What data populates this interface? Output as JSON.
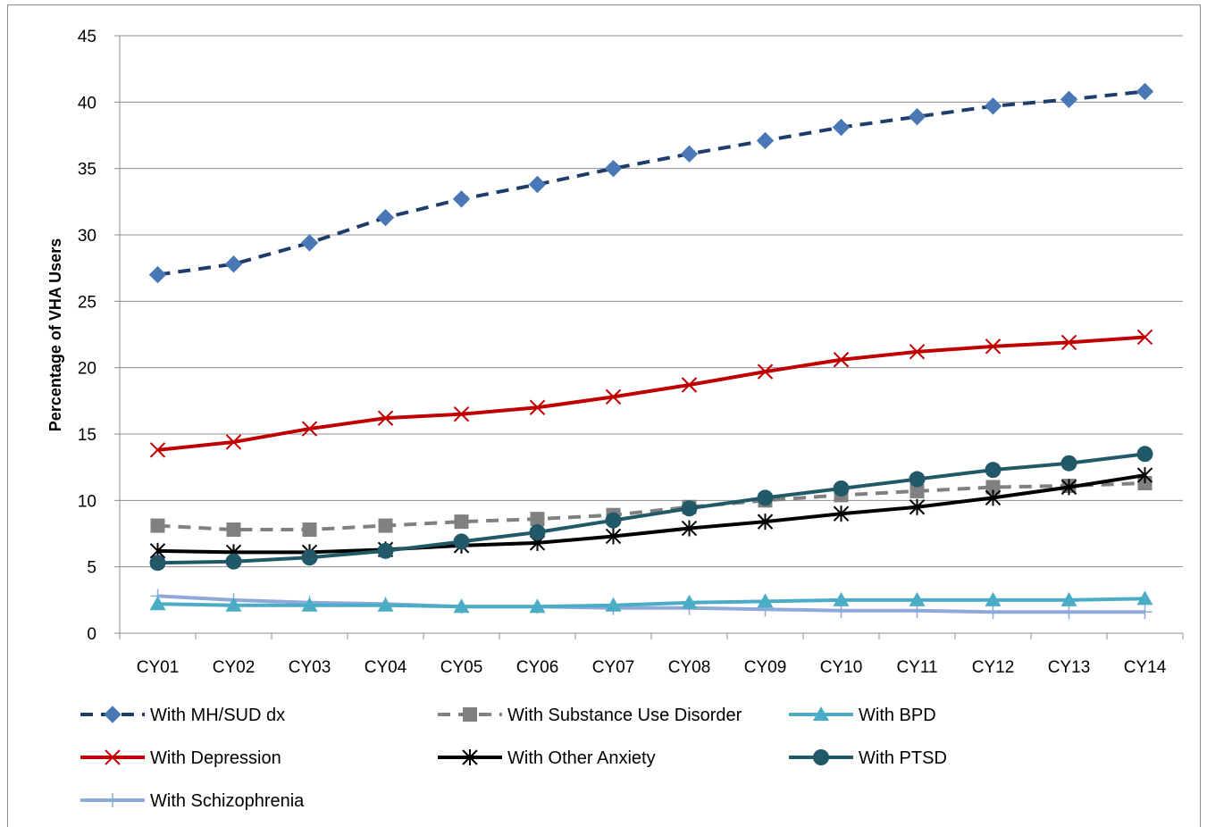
{
  "chart_data": {
    "type": "line",
    "title": "",
    "xlabel": "",
    "ylabel": "Percentage of VHA Users",
    "ylim": [
      0,
      45
    ],
    "yticks": [
      0,
      5,
      10,
      15,
      20,
      25,
      30,
      35,
      40,
      45
    ],
    "grid": "horizontal",
    "legend_position": "bottom",
    "categories": [
      "CY01",
      "CY02",
      "CY03",
      "CY04",
      "CY05",
      "CY06",
      "CY07",
      "CY08",
      "CY09",
      "CY10",
      "CY11",
      "CY12",
      "CY13",
      "CY14"
    ],
    "series": [
      {
        "name": "With MH/SUD dx",
        "color": "#1f3d6b",
        "marker_color": "#4a78b6",
        "marker": "diamond",
        "dash": true,
        "values": [
          27.0,
          27.8,
          29.4,
          31.3,
          32.7,
          33.8,
          35.0,
          36.1,
          37.1,
          38.1,
          38.9,
          39.7,
          40.2,
          40.8
        ]
      },
      {
        "name": "With Substance Use Disorder",
        "color": "#808080",
        "marker_color": "#808080",
        "marker": "square",
        "dash": true,
        "values": [
          8.1,
          7.8,
          7.8,
          8.1,
          8.4,
          8.6,
          8.9,
          9.5,
          10.0,
          10.4,
          10.7,
          11.0,
          11.1,
          11.3
        ]
      },
      {
        "name": "With BPD",
        "color": "#4bacc6",
        "marker_color": "#4bacc6",
        "marker": "triangle",
        "dash": false,
        "values": [
          2.2,
          2.1,
          2.1,
          2.1,
          2.0,
          2.0,
          2.1,
          2.3,
          2.4,
          2.5,
          2.5,
          2.5,
          2.5,
          2.6
        ]
      },
      {
        "name": "With Depression",
        "color": "#c00000",
        "marker_color": "#c00000",
        "marker": "x",
        "dash": false,
        "values": [
          13.8,
          14.4,
          15.4,
          16.2,
          16.5,
          17.0,
          17.8,
          18.7,
          19.7,
          20.6,
          21.2,
          21.6,
          21.9,
          22.3
        ]
      },
      {
        "name": "With Other Anxiety",
        "color": "#000000",
        "marker_color": "#000000",
        "marker": "star",
        "dash": false,
        "values": [
          6.2,
          6.1,
          6.1,
          6.3,
          6.6,
          6.8,
          7.3,
          7.9,
          8.4,
          9.0,
          9.5,
          10.2,
          11.0,
          11.9
        ]
      },
      {
        "name": "With PTSD",
        "color": "#215968",
        "marker_color": "#215968",
        "marker": "circle",
        "dash": false,
        "values": [
          5.3,
          5.4,
          5.7,
          6.2,
          6.9,
          7.6,
          8.5,
          9.4,
          10.2,
          10.9,
          11.6,
          12.3,
          12.8,
          13.5
        ]
      },
      {
        "name": "With Schizophrenia",
        "color": "#8ea9d8",
        "marker_color": "#8ea9d8",
        "marker": "plus",
        "dash": false,
        "values": [
          2.8,
          2.5,
          2.3,
          2.2,
          2.0,
          2.0,
          1.9,
          1.9,
          1.8,
          1.7,
          1.7,
          1.6,
          1.6,
          1.6
        ]
      }
    ]
  }
}
